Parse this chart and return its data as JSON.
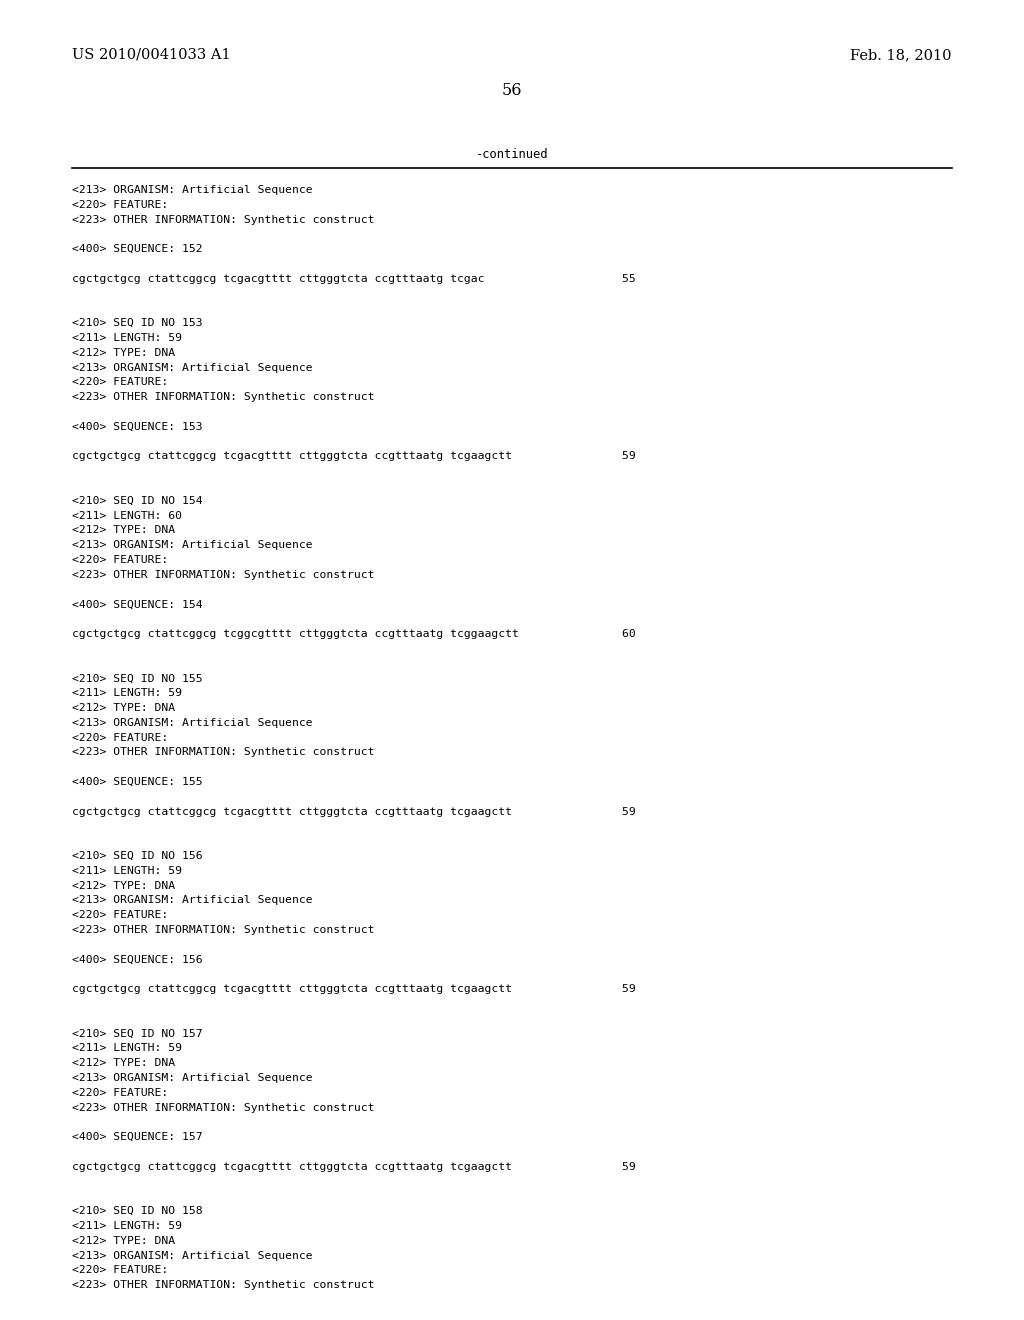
{
  "background_color": "#ffffff",
  "header_left": "US 2010/0041033 A1",
  "header_right": "Feb. 18, 2010",
  "page_number": "56",
  "continued_text": "-continued",
  "content_lines": [
    "<213> ORGANISM: Artificial Sequence",
    "<220> FEATURE:",
    "<223> OTHER INFORMATION: Synthetic construct",
    "",
    "<400> SEQUENCE: 152",
    "",
    "cgctgctgcg ctattcggcg tcgacgtttt cttgggtcta ccgtttaatg tcgac                    55",
    "",
    "",
    "<210> SEQ ID NO 153",
    "<211> LENGTH: 59",
    "<212> TYPE: DNA",
    "<213> ORGANISM: Artificial Sequence",
    "<220> FEATURE:",
    "<223> OTHER INFORMATION: Synthetic construct",
    "",
    "<400> SEQUENCE: 153",
    "",
    "cgctgctgcg ctattcggcg tcgacgtttt cttgggtcta ccgtttaatg tcgaagctt                59",
    "",
    "",
    "<210> SEQ ID NO 154",
    "<211> LENGTH: 60",
    "<212> TYPE: DNA",
    "<213> ORGANISM: Artificial Sequence",
    "<220> FEATURE:",
    "<223> OTHER INFORMATION: Synthetic construct",
    "",
    "<400> SEQUENCE: 154",
    "",
    "cgctgctgcg ctattcggcg tcggcgtttt cttgggtcta ccgtttaatg tcggaagctt               60",
    "",
    "",
    "<210> SEQ ID NO 155",
    "<211> LENGTH: 59",
    "<212> TYPE: DNA",
    "<213> ORGANISM: Artificial Sequence",
    "<220> FEATURE:",
    "<223> OTHER INFORMATION: Synthetic construct",
    "",
    "<400> SEQUENCE: 155",
    "",
    "cgctgctgcg ctattcggcg tcgacgtttt cttgggtcta ccgtttaatg tcgaagctt                59",
    "",
    "",
    "<210> SEQ ID NO 156",
    "<211> LENGTH: 59",
    "<212> TYPE: DNA",
    "<213> ORGANISM: Artificial Sequence",
    "<220> FEATURE:",
    "<223> OTHER INFORMATION: Synthetic construct",
    "",
    "<400> SEQUENCE: 156",
    "",
    "cgctgctgcg ctattcggcg tcgacgtttt cttgggtcta ccgtttaatg tcgaagctt                59",
    "",
    "",
    "<210> SEQ ID NO 157",
    "<211> LENGTH: 59",
    "<212> TYPE: DNA",
    "<213> ORGANISM: Artificial Sequence",
    "<220> FEATURE:",
    "<223> OTHER INFORMATION: Synthetic construct",
    "",
    "<400> SEQUENCE: 157",
    "",
    "cgctgctgcg ctattcggcg tcgacgtttt cttgggtcta ccgtttaatg tcgaagctt                59",
    "",
    "",
    "<210> SEQ ID NO 158",
    "<211> LENGTH: 59",
    "<212> TYPE: DNA",
    "<213> ORGANISM: Artificial Sequence",
    "<220> FEATURE:",
    "<223> OTHER INFORMATION: Synthetic construct"
  ],
  "mono_fontsize": 8.2,
  "header_fontsize": 10.5,
  "page_num_fontsize": 11.5
}
